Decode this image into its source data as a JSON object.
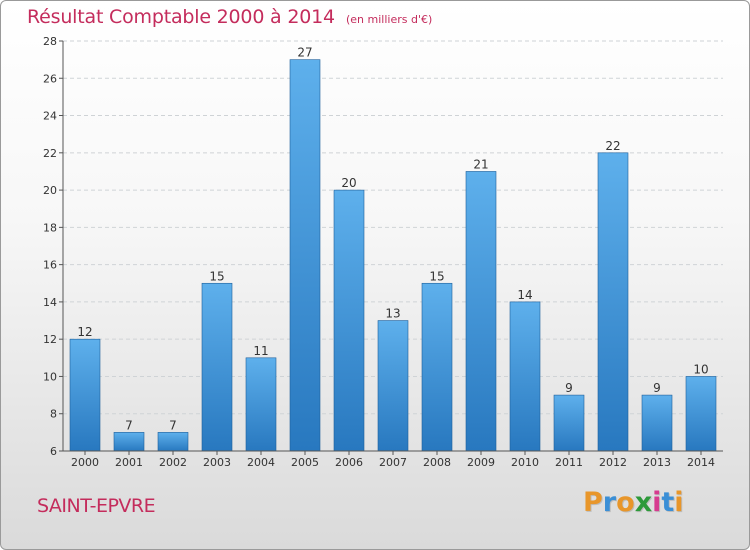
{
  "title": {
    "main": "Résultat Comptable 2000 à 2014",
    "sub": "(en milliers d'€)"
  },
  "commune": "SAINT-EPVRE",
  "brand": {
    "text": "Proxiti",
    "letter_colors": [
      "#e8962a",
      "#3b8fd6",
      "#e8962a",
      "#2d9a3a",
      "#d63b8f",
      "#3b8fd6",
      "#e8962a"
    ]
  },
  "colors": {
    "title": "#c42c5c",
    "bar_light": "#5eb0ec",
    "bar_dark": "#2878bf",
    "grid": "#cfd3d6"
  },
  "chart_data": {
    "type": "bar",
    "title": "Résultat Comptable 2000 à 2014",
    "xlabel": "",
    "ylabel": "",
    "categories": [
      "2000",
      "2001",
      "2002",
      "2003",
      "2004",
      "2005",
      "2006",
      "2007",
      "2008",
      "2009",
      "2010",
      "2011",
      "2012",
      "2013",
      "2014"
    ],
    "values": [
      12,
      7,
      7,
      15,
      11,
      27,
      20,
      13,
      15,
      21,
      14,
      9,
      22,
      9,
      10
    ],
    "ylim": [
      6,
      28
    ],
    "yticks": [
      6,
      8,
      10,
      12,
      14,
      16,
      18,
      20,
      22,
      24,
      26,
      28
    ],
    "grid": true
  }
}
